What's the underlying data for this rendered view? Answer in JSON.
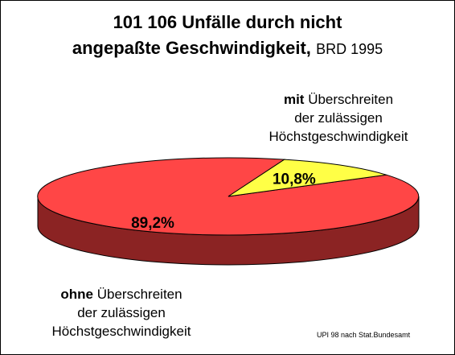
{
  "title": {
    "line1": "101 106 Unfälle durch nicht",
    "line2": "angepaßte Geschwindigkeit,",
    "line2_suffix": "BRD 1995"
  },
  "chart_data": {
    "type": "pie",
    "style": "3d",
    "slices": [
      {
        "value": 10.8,
        "label": "10,8%",
        "color": "#ffff46",
        "side_color": "#c8c800"
      },
      {
        "value": 89.2,
        "label": "89,2%",
        "color": "#ff4646",
        "side_color": "#8b2323"
      }
    ]
  },
  "callouts": {
    "mit": {
      "lead": "mit",
      "line1_rest": "Überschreiten",
      "line2": "der zulässigen",
      "line3": "Höchstgeschwindigkeit"
    },
    "ohne": {
      "lead": "ohne",
      "line1_rest": "Überschreiten",
      "line2": "der zulässigen",
      "line3": "Höchstgeschwindigkeit"
    }
  },
  "source_note": "UPI 98  nach Stat.Bundesamt"
}
